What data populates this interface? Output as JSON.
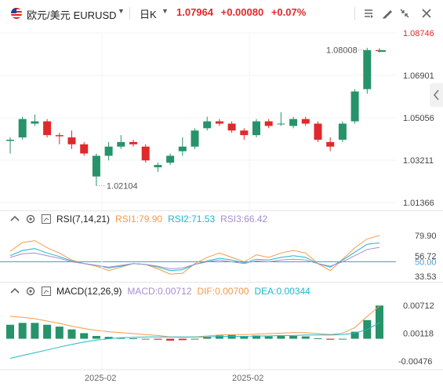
{
  "header": {
    "pair_name": "欧元/美元",
    "symbol": "EURUSD",
    "timeframe": "日K",
    "price": "1.07964",
    "change": "+0.00080",
    "change_pct": "+0.07%"
  },
  "icons": [
    "us-flag-icon",
    "chevron-down-icon",
    "collapse-icon",
    "draw-icon",
    "indicator-icon",
    "compress-icon",
    "close-icon",
    "settings-icon",
    "expand-icon"
  ],
  "colors": {
    "up": "#26936a",
    "down": "#e0292b",
    "axis_text": "#444444",
    "ma_orange": "#f59a4a",
    "ma_cyan": "#23b6c7",
    "ma_purple": "#a48fd0",
    "dea_blue": "#4a9cd8"
  },
  "price_chart": {
    "y_ticks": [
      "1.08746",
      "1.06901",
      "1.05056",
      "1.03211",
      "1.01366"
    ],
    "last_price_label": "1.08008",
    "low_label": "1.02104"
  },
  "rsi": {
    "title": "RSI(7,14,21)",
    "rsi1": "RSI1:79.90",
    "rsi2": "RSI2:71.53",
    "rsi3": "RSI3:66.42",
    "y_ticks": [
      "79.90",
      "56.72",
      "50.00",
      "33.53"
    ]
  },
  "macd": {
    "title": "MACD(12,26,9)",
    "macd": "MACD:0.00712",
    "dif": "DIF:0.00700",
    "dea": "DEA:0.00344",
    "y_ticks": [
      "0.00712",
      "0.00118",
      "-0.00476"
    ]
  },
  "x_axis": {
    "labels": [
      "2025-02",
      "2025-02"
    ]
  },
  "chart_data": [
    {
      "type": "candlestick",
      "title": "",
      "ylim": [
        1.01366,
        1.08746
      ],
      "y_ticks": [
        1.08746,
        1.06901,
        1.05056,
        1.03211,
        1.01366
      ],
      "candles": [
        {
          "o": 1.0405,
          "h": 1.042,
          "l": 1.035,
          "c": 1.041
        },
        {
          "o": 1.042,
          "h": 1.051,
          "l": 1.041,
          "c": 1.05
        },
        {
          "o": 1.048,
          "h": 1.052,
          "l": 1.047,
          "c": 1.049
        },
        {
          "o": 1.049,
          "h": 1.05,
          "l": 1.042,
          "c": 1.043
        },
        {
          "o": 1.043,
          "h": 1.044,
          "l": 1.039,
          "c": 1.0425
        },
        {
          "o": 1.042,
          "h": 1.045,
          "l": 1.037,
          "c": 1.039
        },
        {
          "o": 1.039,
          "h": 1.04,
          "l": 1.034,
          "c": 1.035
        },
        {
          "o": 1.025,
          "h": 1.035,
          "l": 1.021,
          "c": 1.034
        },
        {
          "o": 1.034,
          "h": 1.04,
          "l": 1.032,
          "c": 1.038
        },
        {
          "o": 1.038,
          "h": 1.043,
          "l": 1.037,
          "c": 1.04
        },
        {
          "o": 1.04,
          "h": 1.041,
          "l": 1.038,
          "c": 1.039
        },
        {
          "o": 1.038,
          "h": 1.039,
          "l": 1.031,
          "c": 1.032
        },
        {
          "o": 1.029,
          "h": 1.031,
          "l": 1.027,
          "c": 1.03
        },
        {
          "o": 1.031,
          "h": 1.035,
          "l": 1.03,
          "c": 1.034
        },
        {
          "o": 1.036,
          "h": 1.042,
          "l": 1.034,
          "c": 1.038
        },
        {
          "o": 1.038,
          "h": 1.046,
          "l": 1.037,
          "c": 1.045
        },
        {
          "o": 1.046,
          "h": 1.051,
          "l": 1.045,
          "c": 1.049
        },
        {
          "o": 1.049,
          "h": 1.05,
          "l": 1.047,
          "c": 1.048
        },
        {
          "o": 1.048,
          "h": 1.049,
          "l": 1.044,
          "c": 1.045
        },
        {
          "o": 1.045,
          "h": 1.046,
          "l": 1.041,
          "c": 1.043
        },
        {
          "o": 1.043,
          "h": 1.05,
          "l": 1.042,
          "c": 1.049
        },
        {
          "o": 1.049,
          "h": 1.05,
          "l": 1.046,
          "c": 1.047
        },
        {
          "o": 1.048,
          "h": 1.053,
          "l": 1.047,
          "c": 1.048
        },
        {
          "o": 1.047,
          "h": 1.051,
          "l": 1.046,
          "c": 1.05
        },
        {
          "o": 1.05,
          "h": 1.051,
          "l": 1.047,
          "c": 1.048
        },
        {
          "o": 1.048,
          "h": 1.049,
          "l": 1.04,
          "c": 1.041
        },
        {
          "o": 1.04,
          "h": 1.042,
          "l": 1.036,
          "c": 1.038
        },
        {
          "o": 1.041,
          "h": 1.049,
          "l": 1.04,
          "c": 1.048
        },
        {
          "o": 1.049,
          "h": 1.063,
          "l": 1.048,
          "c": 1.062
        },
        {
          "o": 1.063,
          "h": 1.081,
          "l": 1.061,
          "c": 1.08
        },
        {
          "o": 1.08,
          "h": 1.0808,
          "l": 1.079,
          "c": 1.0796
        }
      ]
    },
    {
      "type": "line",
      "title": "",
      "ylim": [
        33.53,
        79.9
      ],
      "y_ticks": [
        79.9,
        56.72,
        50.0,
        33.53
      ],
      "series": [
        {
          "name": "RSI1",
          "values": [
            62,
            72,
            74,
            66,
            60,
            52,
            48,
            45,
            40,
            44,
            48,
            47,
            42,
            36,
            37,
            48,
            55,
            60,
            55,
            50,
            58,
            55,
            60,
            63,
            60,
            48,
            40,
            53,
            66,
            76,
            79.9
          ]
        },
        {
          "name": "RSI2",
          "values": [
            57,
            63,
            65,
            60,
            56,
            51,
            48,
            46,
            43,
            45,
            48,
            47,
            44,
            40,
            41,
            47,
            51,
            54,
            52,
            49,
            53,
            52,
            55,
            57,
            55,
            48,
            44,
            52,
            61,
            70,
            71.53
          ]
        },
        {
          "name": "RSI3",
          "values": [
            55,
            59,
            60,
            57,
            54,
            50,
            48,
            46,
            44,
            46,
            48,
            47,
            45,
            42,
            43,
            47,
            50,
            52,
            50,
            48,
            51,
            50,
            52,
            53,
            52,
            48,
            45,
            50,
            57,
            64,
            66.42
          ]
        }
      ]
    },
    {
      "type": "bar",
      "title": "",
      "ylim": [
        -0.0058,
        0.008
      ],
      "y_ticks": [
        0.00712,
        0.00118,
        -0.00476
      ],
      "series": [
        {
          "name": "MACD",
          "values": [
            0.003,
            0.0034,
            0.0034,
            0.003,
            0.0026,
            0.002,
            0.0012,
            0.0006,
            0.0004,
            0.0002,
            0.0001,
            0.0,
            -0.0002,
            -0.0004,
            -0.0003,
            0.0,
            0.0004,
            0.0007,
            0.0008,
            0.0006,
            0.0007,
            0.0005,
            0.0006,
            0.0006,
            0.0005,
            0.0001,
            -0.0002,
            0.0,
            0.0015,
            0.004,
            0.00712
          ]
        },
        {
          "name": "DIF",
          "values": [
            0.0048,
            0.0046,
            0.0043,
            0.0038,
            0.0033,
            0.0027,
            0.0022,
            0.0018,
            0.0015,
            0.0013,
            0.0011,
            0.0009,
            0.0007,
            0.0004,
            0.0003,
            0.0004,
            0.0006,
            0.0008,
            0.0009,
            0.0009,
            0.001,
            0.0011,
            0.0012,
            0.0013,
            0.0013,
            0.0011,
            0.0009,
            0.0012,
            0.0024,
            0.0048,
            0.007
          ]
        },
        {
          "name": "DEA",
          "values": [
            -0.0042,
            -0.0036,
            -0.003,
            -0.0024,
            -0.0018,
            -0.0012,
            -0.0007,
            -0.0003,
            0.0,
            0.0002,
            0.0003,
            0.0004,
            0.0004,
            0.0004,
            0.0004,
            0.0004,
            0.0004,
            0.0005,
            0.0005,
            0.0005,
            0.0006,
            0.0006,
            0.0007,
            0.0007,
            0.0008,
            0.0008,
            0.0008,
            0.0009,
            0.0012,
            0.002,
            0.00344
          ]
        }
      ]
    }
  ]
}
